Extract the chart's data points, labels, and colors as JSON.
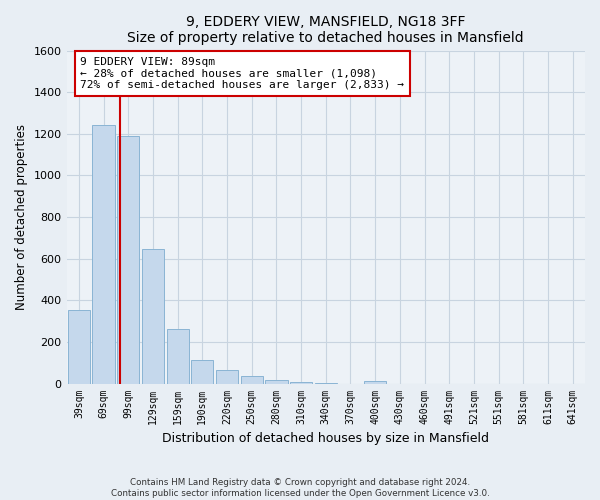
{
  "title": "9, EDDERY VIEW, MANSFIELD, NG18 3FF",
  "subtitle": "Size of property relative to detached houses in Mansfield",
  "xlabel": "Distribution of detached houses by size in Mansfield",
  "ylabel": "Number of detached properties",
  "bar_labels": [
    "39sqm",
    "69sqm",
    "99sqm",
    "129sqm",
    "159sqm",
    "190sqm",
    "220sqm",
    "250sqm",
    "280sqm",
    "310sqm",
    "340sqm",
    "370sqm",
    "400sqm",
    "430sqm",
    "460sqm",
    "491sqm",
    "521sqm",
    "551sqm",
    "581sqm",
    "611sqm",
    "641sqm"
  ],
  "bar_values": [
    355,
    1240,
    1190,
    645,
    260,
    115,
    67,
    35,
    18,
    8,
    2,
    0,
    13,
    0,
    0,
    0,
    0,
    0,
    0,
    0,
    0
  ],
  "bar_color": "#c5d8ec",
  "bar_edge_color": "#8ab4d4",
  "marker_label": "9 EDDERY VIEW: 89sqm",
  "annotation_line1": "← 28% of detached houses are smaller (1,098)",
  "annotation_line2": "72% of semi-detached houses are larger (2,833) →",
  "annotation_box_color": "#ffffff",
  "annotation_box_edge_color": "#cc0000",
  "marker_line_color": "#cc0000",
  "ylim": [
    0,
    1600
  ],
  "yticks": [
    0,
    200,
    400,
    600,
    800,
    1000,
    1200,
    1400,
    1600
  ],
  "footnote1": "Contains HM Land Registry data © Crown copyright and database right 2024.",
  "footnote2": "Contains public sector information licensed under the Open Government Licence v3.0.",
  "background_color": "#e8eef4",
  "plot_background": "#edf2f7",
  "grid_color": "#c8d4e0"
}
